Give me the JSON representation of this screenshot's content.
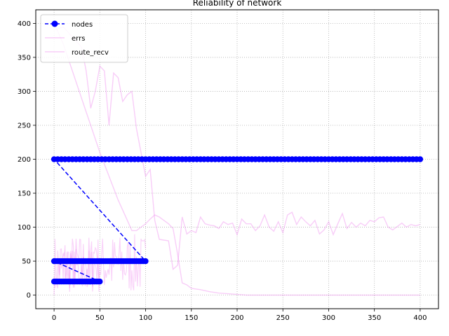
{
  "chart_data": {
    "type": "line",
    "title": "Reliability of network",
    "xlabel": "",
    "ylabel": "",
    "xlim": [
      -20,
      420
    ],
    "ylim": [
      -20,
      420
    ],
    "x_ticks": [
      0,
      50,
      100,
      150,
      200,
      250,
      300,
      350,
      400
    ],
    "y_ticks": [
      0,
      50,
      100,
      150,
      200,
      250,
      300,
      350,
      400
    ],
    "grid": true,
    "legend_position": "top-left",
    "series": [
      {
        "name": "nodes",
        "color": "#0000ff",
        "style": "dashed line with circle markers",
        "segments": [
          {
            "x_start": 0,
            "x_end": 50,
            "step": 2,
            "y": 20
          },
          {
            "x_start": 0,
            "x_end": 100,
            "step": 2,
            "y": 50
          },
          {
            "x_start": 0,
            "x_end": 400,
            "step": 4,
            "y": 200
          }
        ]
      },
      {
        "name": "errs",
        "color": "#ee82ee",
        "style": "solid line, translucent",
        "points": [
          [
            0,
            390
          ],
          [
            10,
            395
          ],
          [
            20,
            380
          ],
          [
            30,
            365
          ],
          [
            35,
            330
          ],
          [
            40,
            275
          ],
          [
            45,
            300
          ],
          [
            50,
            337
          ],
          [
            55,
            330
          ],
          [
            60,
            250
          ],
          [
            65,
            327
          ],
          [
            70,
            320
          ],
          [
            75,
            285
          ],
          [
            80,
            295
          ],
          [
            85,
            300
          ],
          [
            90,
            245
          ],
          [
            95,
            210
          ],
          [
            100,
            175
          ],
          [
            105,
            185
          ],
          [
            110,
            110
          ],
          [
            115,
            82
          ],
          [
            120,
            81
          ],
          [
            125,
            80
          ],
          [
            130,
            38
          ],
          [
            135,
            44
          ],
          [
            140,
            115
          ],
          [
            145,
            90
          ],
          [
            150,
            95
          ],
          [
            155,
            92
          ],
          [
            160,
            115
          ],
          [
            165,
            105
          ],
          [
            170,
            103
          ],
          [
            175,
            102
          ],
          [
            180,
            98
          ],
          [
            185,
            108
          ],
          [
            190,
            104
          ],
          [
            195,
            106
          ],
          [
            200,
            89
          ],
          [
            205,
            112
          ],
          [
            210,
            105
          ],
          [
            215,
            105
          ],
          [
            220,
            95
          ],
          [
            225,
            102
          ],
          [
            230,
            118
          ],
          [
            235,
            100
          ],
          [
            240,
            94
          ],
          [
            245,
            108
          ],
          [
            250,
            92
          ],
          [
            255,
            118
          ],
          [
            260,
            122
          ],
          [
            265,
            104
          ],
          [
            270,
            115
          ],
          [
            275,
            108
          ],
          [
            280,
            102
          ],
          [
            285,
            110
          ],
          [
            290,
            90
          ],
          [
            295,
            96
          ],
          [
            300,
            108
          ],
          [
            305,
            89
          ],
          [
            310,
            105
          ],
          [
            315,
            120
          ],
          [
            320,
            98
          ],
          [
            325,
            107
          ],
          [
            330,
            100
          ],
          [
            335,
            106
          ],
          [
            340,
            102
          ],
          [
            345,
            110
          ],
          [
            350,
            108
          ],
          [
            355,
            114
          ],
          [
            360,
            115
          ],
          [
            365,
            100
          ],
          [
            370,
            96
          ],
          [
            375,
            101
          ],
          [
            380,
            106
          ],
          [
            385,
            100
          ],
          [
            390,
            104
          ],
          [
            395,
            102
          ],
          [
            400,
            104
          ]
        ]
      },
      {
        "name": "route_recv",
        "color": "#ee82ee",
        "style": "solid line, translucent",
        "points": [
          [
            0,
            400
          ],
          [
            10,
            370
          ],
          [
            20,
            330
          ],
          [
            30,
            290
          ],
          [
            40,
            250
          ],
          [
            50,
            210
          ],
          [
            60,
            175
          ],
          [
            70,
            140
          ],
          [
            80,
            110
          ],
          [
            85,
            95
          ],
          [
            90,
            95
          ],
          [
            95,
            100
          ],
          [
            100,
            105
          ],
          [
            105,
            112
          ],
          [
            110,
            118
          ],
          [
            115,
            115
          ],
          [
            120,
            110
          ],
          [
            125,
            105
          ],
          [
            130,
            98
          ],
          [
            135,
            60
          ],
          [
            140,
            18
          ],
          [
            145,
            15
          ],
          [
            150,
            10
          ],
          [
            160,
            8
          ],
          [
            170,
            5
          ],
          [
            180,
            3
          ],
          [
            190,
            2
          ],
          [
            200,
            1
          ],
          [
            210,
            0
          ],
          [
            250,
            0
          ],
          [
            300,
            0
          ],
          [
            350,
            0
          ],
          [
            400,
            0
          ]
        ]
      }
    ],
    "noise_bands": [
      {
        "x_start": 0,
        "x_end": 100,
        "y_min": 0,
        "y_max": 90
      },
      {
        "x_start": 0,
        "x_end": 50,
        "y_min": 10,
        "y_max": 70
      }
    ]
  }
}
